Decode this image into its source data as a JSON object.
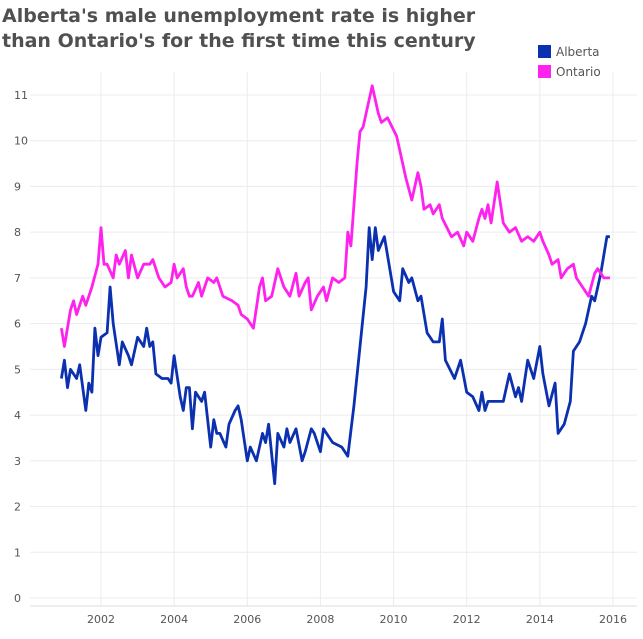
{
  "chart_data": {
    "type": "line",
    "title": "Alberta's male unemployment rate is higher than Ontario's for the first time this century",
    "xlabel": "",
    "ylabel": "",
    "xlim": [
      "2000-01",
      "2016-08"
    ],
    "ylim": [
      0,
      11.5
    ],
    "x_ticks": [
      "2002",
      "2004",
      "2006",
      "2008",
      "2010",
      "2012",
      "2014",
      "2016"
    ],
    "y_ticks": [
      "0",
      "1",
      "2",
      "3",
      "4",
      "5",
      "6",
      "7",
      "8",
      "9",
      "10",
      "11"
    ],
    "grid": true,
    "legend_position": "top-right",
    "series": [
      {
        "name": "Alberta",
        "color": "#0b30b0",
        "points": [
          [
            "2000-12",
            4.8
          ],
          [
            "2001-01",
            5.2
          ],
          [
            "2001-02",
            4.6
          ],
          [
            "2001-03",
            5.0
          ],
          [
            "2001-05",
            4.8
          ],
          [
            "2001-06",
            5.1
          ],
          [
            "2001-08",
            4.1
          ],
          [
            "2001-09",
            4.7
          ],
          [
            "2001-10",
            4.5
          ],
          [
            "2001-11",
            5.9
          ],
          [
            "2001-12",
            5.3
          ],
          [
            "2002-01",
            5.7
          ],
          [
            "2002-03",
            5.8
          ],
          [
            "2002-04",
            6.8
          ],
          [
            "2002-05",
            6.0
          ],
          [
            "2002-07",
            5.1
          ],
          [
            "2002-08",
            5.6
          ],
          [
            "2002-10",
            5.3
          ],
          [
            "2002-11",
            5.1
          ],
          [
            "2003-01",
            5.7
          ],
          [
            "2003-03",
            5.5
          ],
          [
            "2003-04",
            5.9
          ],
          [
            "2003-05",
            5.5
          ],
          [
            "2003-06",
            5.6
          ],
          [
            "2003-07",
            4.9
          ],
          [
            "2003-09",
            4.8
          ],
          [
            "2003-11",
            4.8
          ],
          [
            "2003-12",
            4.7
          ],
          [
            "2004-01",
            5.3
          ],
          [
            "2004-03",
            4.4
          ],
          [
            "2004-04",
            4.1
          ],
          [
            "2004-05",
            4.6
          ],
          [
            "2004-06",
            4.6
          ],
          [
            "2004-07",
            3.7
          ],
          [
            "2004-08",
            4.5
          ],
          [
            "2004-10",
            4.3
          ],
          [
            "2004-11",
            4.5
          ],
          [
            "2005-01",
            3.3
          ],
          [
            "2005-02",
            3.9
          ],
          [
            "2005-03",
            3.6
          ],
          [
            "2005-04",
            3.6
          ],
          [
            "2005-06",
            3.3
          ],
          [
            "2005-07",
            3.8
          ],
          [
            "2005-09",
            4.1
          ],
          [
            "2005-10",
            4.2
          ],
          [
            "2005-11",
            3.9
          ],
          [
            "2006-01",
            3.0
          ],
          [
            "2006-02",
            3.3
          ],
          [
            "2006-04",
            3.0
          ],
          [
            "2006-06",
            3.6
          ],
          [
            "2006-07",
            3.4
          ],
          [
            "2006-08",
            3.8
          ],
          [
            "2006-10",
            2.5
          ],
          [
            "2006-11",
            3.6
          ],
          [
            "2007-01",
            3.3
          ],
          [
            "2007-02",
            3.7
          ],
          [
            "2007-03",
            3.4
          ],
          [
            "2007-05",
            3.7
          ],
          [
            "2007-07",
            3.0
          ],
          [
            "2007-08",
            3.2
          ],
          [
            "2007-10",
            3.7
          ],
          [
            "2007-11",
            3.6
          ],
          [
            "2008-01",
            3.2
          ],
          [
            "2008-02",
            3.7
          ],
          [
            "2008-03",
            3.6
          ],
          [
            "2008-05",
            3.4
          ],
          [
            "2008-08",
            3.3
          ],
          [
            "2008-10",
            3.1
          ],
          [
            "2008-12",
            4.2
          ],
          [
            "2009-02",
            5.5
          ],
          [
            "2009-04",
            6.8
          ],
          [
            "2009-05",
            8.1
          ],
          [
            "2009-06",
            7.4
          ],
          [
            "2009-07",
            8.1
          ],
          [
            "2009-08",
            7.6
          ],
          [
            "2009-10",
            7.9
          ],
          [
            "2010-01",
            6.7
          ],
          [
            "2010-03",
            6.5
          ],
          [
            "2010-04",
            7.2
          ],
          [
            "2010-06",
            6.9
          ],
          [
            "2010-07",
            7.0
          ],
          [
            "2010-09",
            6.5
          ],
          [
            "2010-10",
            6.6
          ],
          [
            "2010-12",
            5.8
          ],
          [
            "2011-02",
            5.6
          ],
          [
            "2011-04",
            5.6
          ],
          [
            "2011-05",
            6.1
          ],
          [
            "2011-06",
            5.2
          ],
          [
            "2011-09",
            4.8
          ],
          [
            "2011-11",
            5.2
          ],
          [
            "2012-01",
            4.5
          ],
          [
            "2012-03",
            4.4
          ],
          [
            "2012-05",
            4.1
          ],
          [
            "2012-06",
            4.5
          ],
          [
            "2012-07",
            4.1
          ],
          [
            "2012-08",
            4.3
          ],
          [
            "2013-01",
            4.3
          ],
          [
            "2013-03",
            4.9
          ],
          [
            "2013-05",
            4.4
          ],
          [
            "2013-06",
            4.6
          ],
          [
            "2013-07",
            4.3
          ],
          [
            "2013-09",
            5.2
          ],
          [
            "2013-11",
            4.8
          ],
          [
            "2014-01",
            5.5
          ],
          [
            "2014-02",
            4.9
          ],
          [
            "2014-04",
            4.2
          ],
          [
            "2014-06",
            4.7
          ],
          [
            "2014-07",
            3.6
          ],
          [
            "2014-09",
            3.8
          ],
          [
            "2014-11",
            4.3
          ],
          [
            "2014-12",
            5.4
          ],
          [
            "2015-02",
            5.6
          ],
          [
            "2015-04",
            6.0
          ],
          [
            "2015-06",
            6.6
          ],
          [
            "2015-07",
            6.5
          ],
          [
            "2015-09",
            7.1
          ],
          [
            "2015-11",
            7.9
          ],
          [
            "2015-12",
            7.9
          ]
        ]
      },
      {
        "name": "Ontario",
        "color": "#ff22ee",
        "points": [
          [
            "2000-12",
            5.9
          ],
          [
            "2001-01",
            5.5
          ],
          [
            "2001-03",
            6.3
          ],
          [
            "2001-04",
            6.5
          ],
          [
            "2001-05",
            6.2
          ],
          [
            "2001-07",
            6.6
          ],
          [
            "2001-08",
            6.4
          ],
          [
            "2001-10",
            6.8
          ],
          [
            "2001-12",
            7.3
          ],
          [
            "2002-01",
            8.1
          ],
          [
            "2002-02",
            7.3
          ],
          [
            "2002-03",
            7.3
          ],
          [
            "2002-05",
            7.0
          ],
          [
            "2002-06",
            7.5
          ],
          [
            "2002-07",
            7.3
          ],
          [
            "2002-09",
            7.6
          ],
          [
            "2002-10",
            7.0
          ],
          [
            "2002-11",
            7.5
          ],
          [
            "2003-01",
            7.0
          ],
          [
            "2003-03",
            7.3
          ],
          [
            "2003-05",
            7.3
          ],
          [
            "2003-06",
            7.4
          ],
          [
            "2003-08",
            7.0
          ],
          [
            "2003-10",
            6.8
          ],
          [
            "2003-12",
            6.9
          ],
          [
            "2004-01",
            7.3
          ],
          [
            "2004-02",
            7.0
          ],
          [
            "2004-04",
            7.2
          ],
          [
            "2004-05",
            6.8
          ],
          [
            "2004-06",
            6.6
          ],
          [
            "2004-07",
            6.6
          ],
          [
            "2004-09",
            6.9
          ],
          [
            "2004-10",
            6.6
          ],
          [
            "2004-12",
            7.0
          ],
          [
            "2005-02",
            6.9
          ],
          [
            "2005-03",
            7.0
          ],
          [
            "2005-05",
            6.6
          ],
          [
            "2005-08",
            6.5
          ],
          [
            "2005-10",
            6.4
          ],
          [
            "2005-11",
            6.2
          ],
          [
            "2006-01",
            6.1
          ],
          [
            "2006-03",
            5.9
          ],
          [
            "2006-05",
            6.8
          ],
          [
            "2006-06",
            7.0
          ],
          [
            "2006-07",
            6.5
          ],
          [
            "2006-09",
            6.6
          ],
          [
            "2006-11",
            7.2
          ],
          [
            "2007-01",
            6.8
          ],
          [
            "2007-03",
            6.6
          ],
          [
            "2007-05",
            7.1
          ],
          [
            "2007-06",
            6.6
          ],
          [
            "2007-08",
            6.9
          ],
          [
            "2007-09",
            7.0
          ],
          [
            "2007-10",
            6.3
          ],
          [
            "2007-12",
            6.6
          ],
          [
            "2008-02",
            6.8
          ],
          [
            "2008-03",
            6.5
          ],
          [
            "2008-05",
            7.0
          ],
          [
            "2008-07",
            6.9
          ],
          [
            "2008-09",
            7.0
          ],
          [
            "2008-10",
            8.0
          ],
          [
            "2008-11",
            7.7
          ],
          [
            "2009-01",
            9.5
          ],
          [
            "2009-02",
            10.2
          ],
          [
            "2009-03",
            10.3
          ],
          [
            "2009-06",
            11.2
          ],
          [
            "2009-08",
            10.6
          ],
          [
            "2009-09",
            10.4
          ],
          [
            "2009-11",
            10.5
          ],
          [
            "2010-02",
            10.1
          ],
          [
            "2010-04",
            9.5
          ],
          [
            "2010-05",
            9.2
          ],
          [
            "2010-07",
            8.7
          ],
          [
            "2010-09",
            9.3
          ],
          [
            "2010-10",
            9.0
          ],
          [
            "2010-11",
            8.5
          ],
          [
            "2011-01",
            8.6
          ],
          [
            "2011-02",
            8.4
          ],
          [
            "2011-04",
            8.6
          ],
          [
            "2011-05",
            8.3
          ],
          [
            "2011-08",
            7.9
          ],
          [
            "2011-10",
            8.0
          ],
          [
            "2011-12",
            7.7
          ],
          [
            "2012-01",
            8.0
          ],
          [
            "2012-03",
            7.8
          ],
          [
            "2012-05",
            8.3
          ],
          [
            "2012-06",
            8.5
          ],
          [
            "2012-07",
            8.3
          ],
          [
            "2012-08",
            8.6
          ],
          [
            "2012-09",
            8.2
          ],
          [
            "2012-11",
            9.1
          ],
          [
            "2013-01",
            8.2
          ],
          [
            "2013-03",
            8.0
          ],
          [
            "2013-05",
            8.1
          ],
          [
            "2013-07",
            7.8
          ],
          [
            "2013-09",
            7.9
          ],
          [
            "2013-11",
            7.8
          ],
          [
            "2014-01",
            8.0
          ],
          [
            "2014-02",
            7.8
          ],
          [
            "2014-04",
            7.5
          ],
          [
            "2014-05",
            7.3
          ],
          [
            "2014-07",
            7.4
          ],
          [
            "2014-08",
            7.0
          ],
          [
            "2014-10",
            7.2
          ],
          [
            "2014-12",
            7.3
          ],
          [
            "2015-01",
            7.0
          ],
          [
            "2015-03",
            6.8
          ],
          [
            "2015-05",
            6.6
          ],
          [
            "2015-07",
            7.1
          ],
          [
            "2015-08",
            7.2
          ],
          [
            "2015-10",
            7.0
          ],
          [
            "2015-12",
            7.0
          ]
        ]
      }
    ]
  }
}
